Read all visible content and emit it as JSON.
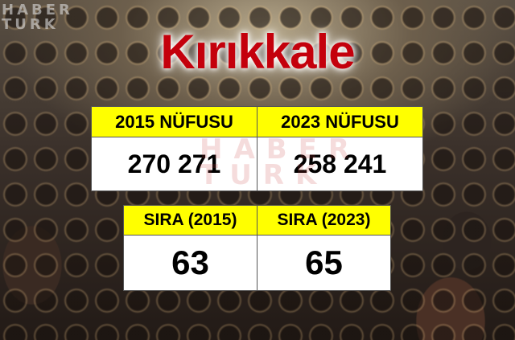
{
  "logo": {
    "line1": "HABER",
    "line2": "TURK"
  },
  "title": "Kırıkkale",
  "population_table": {
    "headers": [
      "2015 NÜFUSU",
      "2023 NÜFUSU"
    ],
    "values": [
      "270 271",
      "258 241"
    ]
  },
  "rank_table": {
    "headers": [
      "SIRA (2015)",
      "SIRA (2023)"
    ],
    "values": [
      "63",
      "65"
    ]
  },
  "colors": {
    "title": "#c4000c",
    "header_bg": "#ffff00",
    "value_bg": "#ffffff"
  }
}
